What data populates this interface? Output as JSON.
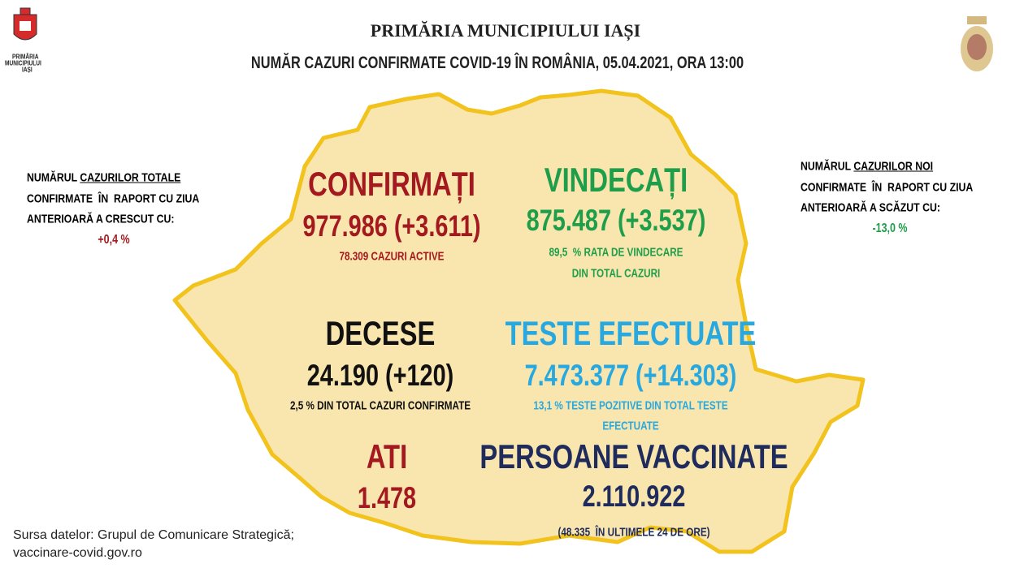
{
  "header": {
    "org": "PRIMĂRIA MUNICIPIULUI IAȘI",
    "subtitle": "NUMĂR CAZURI CONFIRMATE COVID-19 ÎN ROMÂNIA, 05.04.2021, ORA 13:00"
  },
  "logo": {
    "lines": [
      "PRIMĂRIA",
      "MUNICIPIULUI",
      "IAȘI"
    ]
  },
  "left_note": {
    "prefix": "NUMĂRUL",
    "underlined": "CAZURILOR TOTALE",
    "lines": [
      "CONFIRMATE  ÎN  RAPORT CU ZIUA",
      "ANTERIOARĂ A CRESCUT CU:"
    ],
    "value": "+0,4 %"
  },
  "right_note": {
    "prefix": "NUMĂRUL",
    "underlined": "CAZURILOR NOI",
    "lines": [
      "CONFIRMATE  ÎN  RAPORT CU ZIUA",
      "ANTERIOARĂ A SCĂZUT CU:"
    ],
    "value": "-13,0 %"
  },
  "stats": {
    "confirmed": {
      "title": "CONFIRMAȚI",
      "value": "977.986 (+3.611)",
      "notes": [
        "78.309 CAZURI ACTIVE"
      ]
    },
    "recovered": {
      "title": "VINDECAȚI",
      "value": "875.487 (+3.537)",
      "notes": [
        "89,5  % RATA DE VINDECARE",
        "DIN TOTAL CAZURI"
      ]
    },
    "deaths": {
      "title": "DECESE",
      "value": "24.190 (+120)",
      "notes": [
        "2,5 % DIN TOTAL CAZURI CONFIRMATE"
      ]
    },
    "tests": {
      "title": "TESTE EFECTUATE",
      "value": "7.473.377 (+14.303)",
      "notes": [
        "13,1 % TESTE POZITIVE DIN TOTAL TESTE",
        "EFECTUATE"
      ]
    },
    "icu": {
      "title": "ATI",
      "value": "1.478"
    },
    "vaccinated": {
      "title": "PERSOANE VACCINATE",
      "value": "2.110.922",
      "notes": [
        "(48.335  ÎN ULTIMELE 24 DE ORE)"
      ]
    }
  },
  "footer": {
    "lines": [
      "Sursa datelor: Grupul de Comunicare Strategică;",
      "vaccinare-covid.gov.ro"
    ]
  }
}
